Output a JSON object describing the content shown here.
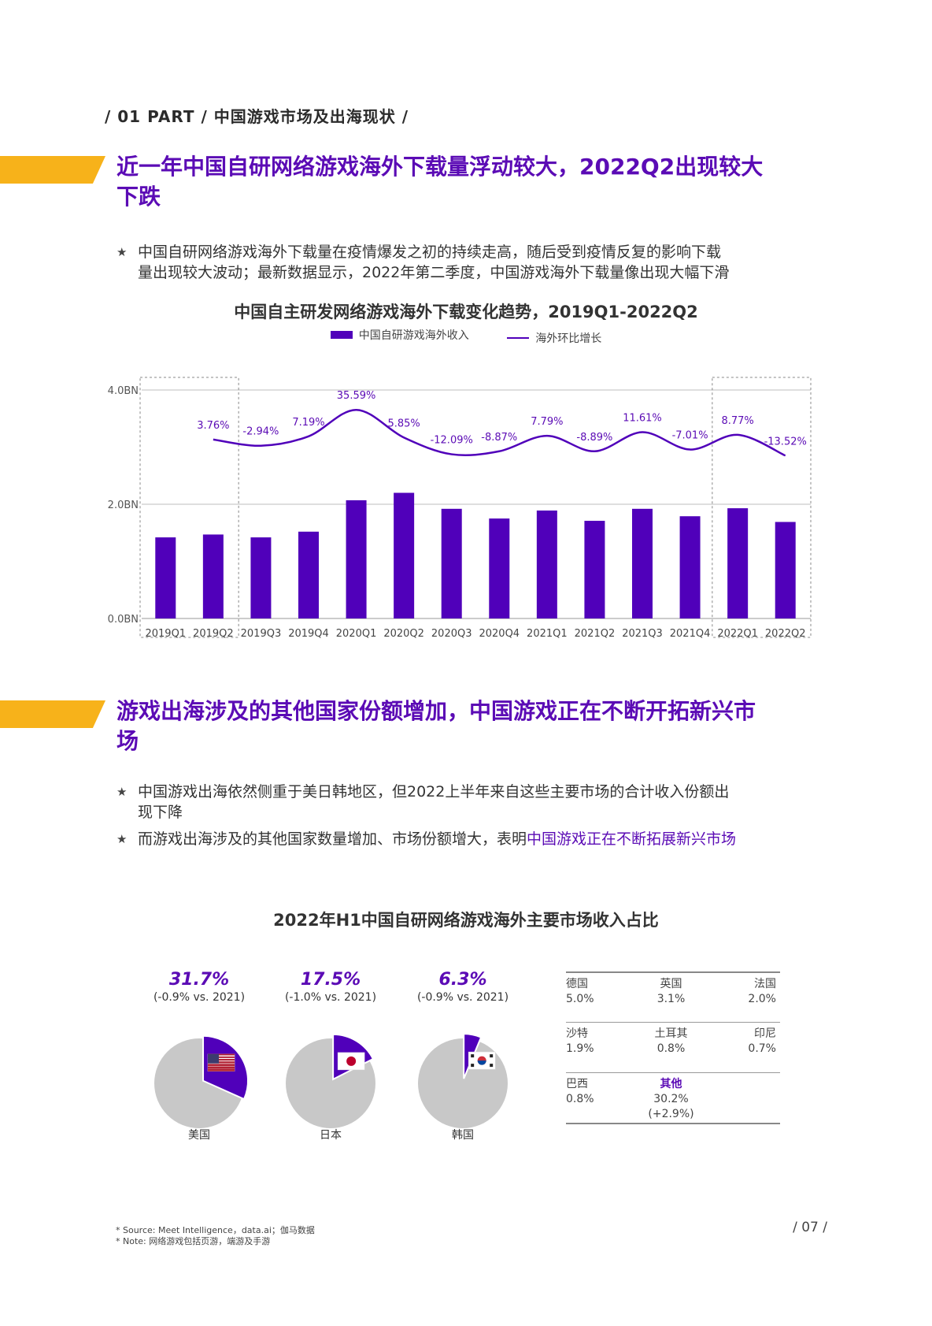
{
  "header": {
    "part": "/ 01 PART / 中国游戏市场及出海现状 /"
  },
  "section1": {
    "title_line1": "近一年中国自研网络游戏海外下载量浮动较大，2022Q2出现较大",
    "title_line2": "下跌",
    "bullet1_line1": "中国自研网络游戏海外下载量在疫情爆发之初的持续走高，随后受到疫情反复的影响下载",
    "bullet1_line2": "量出现较大波动；最新数据显示，2022年第二季度，中国游戏海外下载量像出现大幅下滑"
  },
  "chart_data": [
    {
      "type": "bar",
      "title": "中国自主研发网络游戏海外下载变化趋势，2019Q1-2022Q2",
      "categories": [
        "2019Q1",
        "2019Q2",
        "2019Q3",
        "2019Q4",
        "2020Q1",
        "2020Q2",
        "2020Q3",
        "2020Q4",
        "2021Q1",
        "2021Q2",
        "2021Q3",
        "2021Q4",
        "2022Q1",
        "2022Q2"
      ],
      "series": [
        {
          "name": "中国自研游戏海外收入",
          "type": "bar",
          "values": [
            1.42,
            1.47,
            1.42,
            1.52,
            2.07,
            2.2,
            1.92,
            1.75,
            1.89,
            1.71,
            1.92,
            1.79,
            1.93,
            1.69
          ]
        },
        {
          "name": "海外环比增长",
          "type": "line",
          "values": [
            null,
            3.76,
            -2.94,
            7.19,
            35.59,
            5.85,
            -12.09,
            -8.87,
            7.79,
            -8.89,
            11.61,
            -7.01,
            8.77,
            -13.52
          ]
        }
      ],
      "line_labels": [
        null,
        "3.76%",
        "-2.94%",
        "7.19%",
        "35.59%",
        "5.85%",
        "-12.09%",
        "-8.87%",
        "7.79%",
        "-8.89%",
        "11.61%",
        "-7.01%",
        "8.77%",
        "-13.52%"
      ],
      "y_ticks": [
        "0.0BN",
        "2.0BN",
        "4.0BN"
      ],
      "ylim": [
        0,
        4
      ],
      "highlight_groups": [
        [
          "2019Q1",
          "2019Q2"
        ],
        [
          "2022Q1",
          "2022Q2"
        ]
      ],
      "colors": {
        "bar": "#5000BA",
        "line": "#5000BA",
        "label": "#5B0BB5"
      }
    },
    {
      "type": "pie",
      "title": "2022年H1中国自研网络游戏海外主要市场收入占比",
      "pies": [
        {
          "market": "美国",
          "share": 31.7,
          "pct_label": "31.7%",
          "delta_label": "(-0.9% vs. 2021)",
          "flag": "us-flag-icon"
        },
        {
          "market": "日本",
          "share": 17.5,
          "pct_label": "17.5%",
          "delta_label": "(-1.0% vs. 2021)",
          "flag": "japan-flag-icon"
        },
        {
          "market": "韩国",
          "share": 6.3,
          "pct_label": "6.3%",
          "delta_label": "(-0.9% vs. 2021)",
          "flag": "korea-flag-icon"
        }
      ],
      "colors": {
        "slice": "#5000BA",
        "rest": "#C8C8C8"
      }
    }
  ],
  "section2": {
    "title_line1": "游戏出海涉及的其他国家份额增加，中国游戏正在不断开拓新兴市",
    "title_line2": "场",
    "bullet1_line1": "中国游戏出海依然侧重于美日韩地区，但2022上半年来自这些主要市场的合计收入份额出",
    "bullet1_line2": "现下降",
    "bullet2_prefix": "而游戏出海涉及的其他国家数量增加、市场份额增大，表明",
    "bullet2_highlight": "中国游戏正在不断拓展新兴市场"
  },
  "market_table": {
    "rows": [
      [
        {
          "name": "德国",
          "value": "5.0%"
        },
        {
          "name": "英国",
          "value": "3.1%"
        },
        {
          "name": "法国",
          "value": "2.0%"
        }
      ],
      [
        {
          "name": "沙特",
          "value": "1.9%"
        },
        {
          "name": "土耳其",
          "value": "0.8%"
        },
        {
          "name": "印尼",
          "value": "0.7%"
        }
      ],
      [
        {
          "name": "巴西",
          "value": "0.8%"
        },
        {
          "name": "其他",
          "value": "30.2%(+2.9%)"
        },
        {
          "name": "",
          "value": ""
        }
      ]
    ]
  },
  "footer": {
    "source": "* Source: Meet Intelligence，data.ai；伽马数据",
    "note": "* Note: 网络游戏包括页游，端游及手游",
    "page": "/ 07 /"
  }
}
